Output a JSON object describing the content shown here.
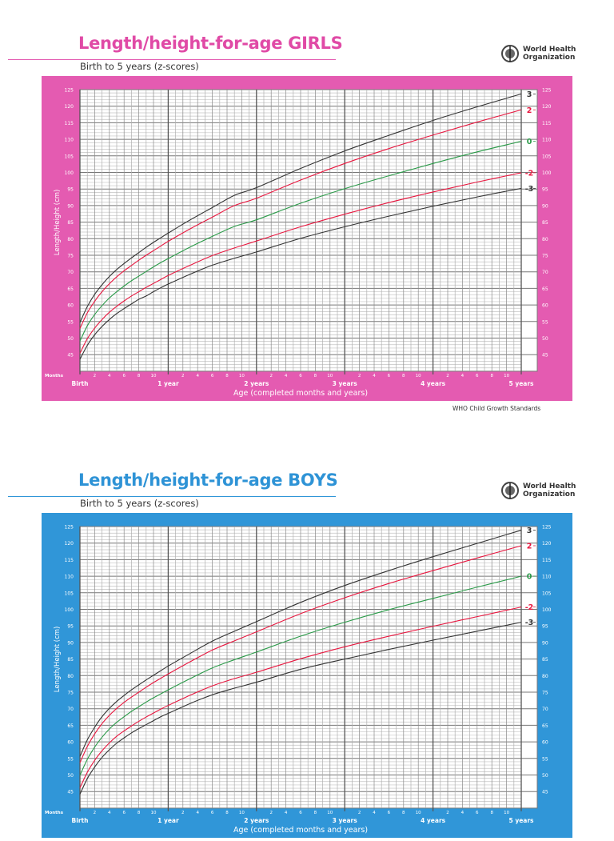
{
  "logo": {
    "line1": "World Health",
    "line2": "Organization"
  },
  "footer": "WHO Child Growth Standards",
  "colors": {
    "girls_accent": "#e45bb1",
    "girls_title": "#e04aa6",
    "boys_accent": "#3096d8",
    "boys_title": "#2e93d6",
    "z3": "#333333",
    "z2": "#e8173f",
    "z0": "#2a9a48"
  },
  "chart_data": [
    {
      "type": "line",
      "title": "Length/height-for-age GIRLS",
      "subtitle": "Birth to 5 years (z-scores)",
      "xlabel": "Age (completed months and years)",
      "ylabel": "Length/Height (cm)",
      "months_label": "Months",
      "xlim": [
        0,
        60
      ],
      "ylim": [
        40,
        125
      ],
      "grid": true,
      "yticks": [
        "45",
        "50",
        "55",
        "60",
        "65",
        "70",
        "75",
        "80",
        "85",
        "90",
        "95",
        "100",
        "105",
        "110",
        "115",
        "120",
        "125"
      ],
      "month_ticks": [
        "2",
        "4",
        "6",
        "8",
        "10"
      ],
      "year_labels": [
        "Birth",
        "1 year",
        "2 years",
        "3 years",
        "4 years",
        "5 years"
      ],
      "x": [
        0,
        1,
        2,
        3,
        4,
        5,
        6,
        7,
        8,
        9,
        10,
        11,
        12,
        15,
        18,
        21,
        24,
        30,
        36,
        42,
        48,
        54,
        60
      ],
      "series": [
        {
          "name": "3",
          "color": "#333333",
          "values": [
            54.7,
            59.5,
            63.2,
            66.1,
            68.6,
            70.7,
            72.5,
            74.2,
            75.8,
            77.4,
            78.9,
            80.3,
            81.7,
            85.7,
            89.4,
            93.1,
            95.4,
            101.2,
            106.5,
            111.2,
            115.7,
            119.8,
            123.7
          ]
        },
        {
          "name": "2",
          "color": "#e8173f",
          "values": [
            52.9,
            57.6,
            61.1,
            64.0,
            66.4,
            68.5,
            70.3,
            71.9,
            73.5,
            75.0,
            76.4,
            77.8,
            79.2,
            83.0,
            86.5,
            90.0,
            92.2,
            97.7,
            102.7,
            107.2,
            111.3,
            115.2,
            118.9
          ]
        },
        {
          "name": "0",
          "color": "#2a9a48",
          "values": [
            49.1,
            53.7,
            57.1,
            59.8,
            62.1,
            64.0,
            65.7,
            67.3,
            68.7,
            70.1,
            71.5,
            72.8,
            74.0,
            77.5,
            80.7,
            83.7,
            85.7,
            90.7,
            95.1,
            99.0,
            102.7,
            106.2,
            109.4
          ]
        },
        {
          "name": "-2",
          "color": "#e8173f",
          "values": [
            45.4,
            49.8,
            53.0,
            55.6,
            57.8,
            59.6,
            61.2,
            62.7,
            64.0,
            65.3,
            66.5,
            67.7,
            68.9,
            72.0,
            74.9,
            77.2,
            79.3,
            83.6,
            87.4,
            90.9,
            94.1,
            97.1,
            99.9
          ]
        },
        {
          "name": "-3",
          "color": "#333333",
          "values": [
            43.6,
            47.8,
            51.0,
            53.5,
            55.6,
            57.4,
            58.9,
            60.3,
            61.7,
            62.7,
            64.0,
            65.2,
            66.3,
            69.3,
            72.0,
            74.1,
            76.0,
            80.1,
            83.6,
            86.8,
            89.8,
            92.6,
            95.2
          ]
        }
      ]
    },
    {
      "type": "line",
      "title": "Length/height-for-age BOYS",
      "subtitle": "Birth to 5 years (z-scores)",
      "xlabel": "Age (completed months and years)",
      "ylabel": "Length/Height (cm)",
      "months_label": "Months",
      "xlim": [
        0,
        60
      ],
      "ylim": [
        40,
        125
      ],
      "grid": true,
      "yticks": [
        "45",
        "50",
        "55",
        "60",
        "65",
        "70",
        "75",
        "80",
        "85",
        "90",
        "95",
        "100",
        "105",
        "110",
        "115",
        "120",
        "125"
      ],
      "month_ticks": [
        "2",
        "4",
        "6",
        "8",
        "10"
      ],
      "year_labels": [
        "Birth",
        "1 year",
        "2 years",
        "3 years",
        "4 years",
        "5 years"
      ],
      "x": [
        0,
        1,
        2,
        3,
        4,
        5,
        6,
        7,
        8,
        9,
        10,
        11,
        12,
        15,
        18,
        21,
        24,
        30,
        36,
        42,
        48,
        54,
        60
      ],
      "series": [
        {
          "name": "3",
          "color": "#333333",
          "values": [
            55.6,
            60.6,
            64.4,
            67.6,
            70.1,
            72.2,
            74.0,
            75.7,
            77.2,
            78.7,
            80.1,
            81.5,
            82.9,
            86.7,
            90.4,
            93.4,
            96.3,
            102.1,
            107.2,
            111.7,
            115.9,
            119.9,
            123.9
          ]
        },
        {
          "name": "2",
          "color": "#e8173f",
          "values": [
            53.7,
            58.6,
            62.4,
            65.5,
            68.0,
            70.1,
            71.9,
            73.5,
            75.0,
            76.5,
            77.9,
            79.2,
            80.5,
            84.2,
            87.7,
            90.5,
            93.2,
            98.7,
            103.5,
            107.8,
            111.7,
            115.5,
            119.2
          ]
        },
        {
          "name": "0",
          "color": "#2a9a48",
          "values": [
            49.9,
            54.7,
            58.4,
            61.4,
            63.9,
            65.9,
            67.6,
            69.2,
            70.6,
            72.0,
            73.3,
            74.5,
            75.7,
            79.1,
            82.3,
            84.8,
            87.1,
            91.9,
            96.1,
            99.9,
            103.3,
            106.7,
            110.0
          ]
        },
        {
          "name": "-2",
          "color": "#e8173f",
          "values": [
            46.1,
            50.8,
            54.4,
            57.3,
            59.7,
            61.7,
            63.3,
            64.8,
            66.2,
            67.5,
            68.7,
            69.9,
            71.0,
            74.1,
            76.9,
            79.1,
            81.0,
            85.1,
            88.7,
            91.9,
            94.9,
            97.8,
            100.7
          ]
        },
        {
          "name": "-3",
          "color": "#333333",
          "values": [
            44.2,
            48.9,
            52.4,
            55.3,
            57.6,
            59.6,
            61.2,
            62.7,
            64.0,
            65.2,
            66.4,
            67.6,
            68.6,
            71.6,
            74.2,
            76.2,
            78.0,
            81.9,
            85.0,
            87.9,
            90.7,
            93.4,
            96.1
          ]
        }
      ]
    }
  ]
}
